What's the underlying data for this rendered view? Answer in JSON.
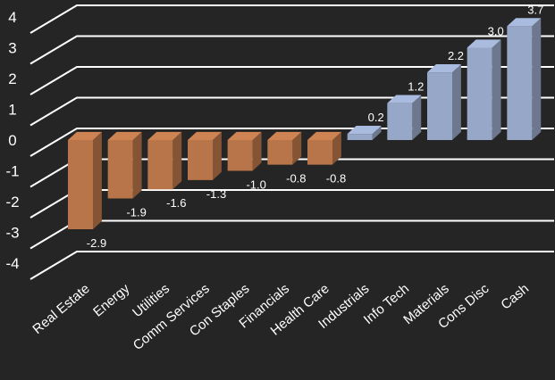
{
  "chart_data": {
    "type": "bar",
    "categories": [
      "Real Estate",
      "Energy",
      "Utilities",
      "Comm Services",
      "Con Staples",
      "Financials",
      "Health Care",
      "Industrials",
      "Info Tech",
      "Materials",
      "Cons Disc",
      "Cash"
    ],
    "values": [
      -2.9,
      -1.9,
      -1.6,
      -1.3,
      -1.0,
      -0.8,
      -0.8,
      0.2,
      1.2,
      2.2,
      3.0,
      3.7
    ],
    "data_labels": [
      "-2.9",
      "-1.9",
      "-1.6",
      "-1.3",
      "-1.0",
      "-0.8",
      "-0.8",
      "0.2",
      "1.2",
      "2.2",
      "3.0",
      "3.7"
    ],
    "y_ticks": [
      "4",
      "3",
      "2",
      "1",
      "0",
      "-1",
      "-2",
      "-3",
      "-4"
    ],
    "ylim": [
      -4,
      4
    ],
    "grid": true,
    "style": "3d",
    "colors": {
      "background": "#252525",
      "negative_bar": "#b8754a",
      "positive_bar": "#97a7c7",
      "grid": "#ffffff",
      "text": "#ffffff"
    }
  }
}
